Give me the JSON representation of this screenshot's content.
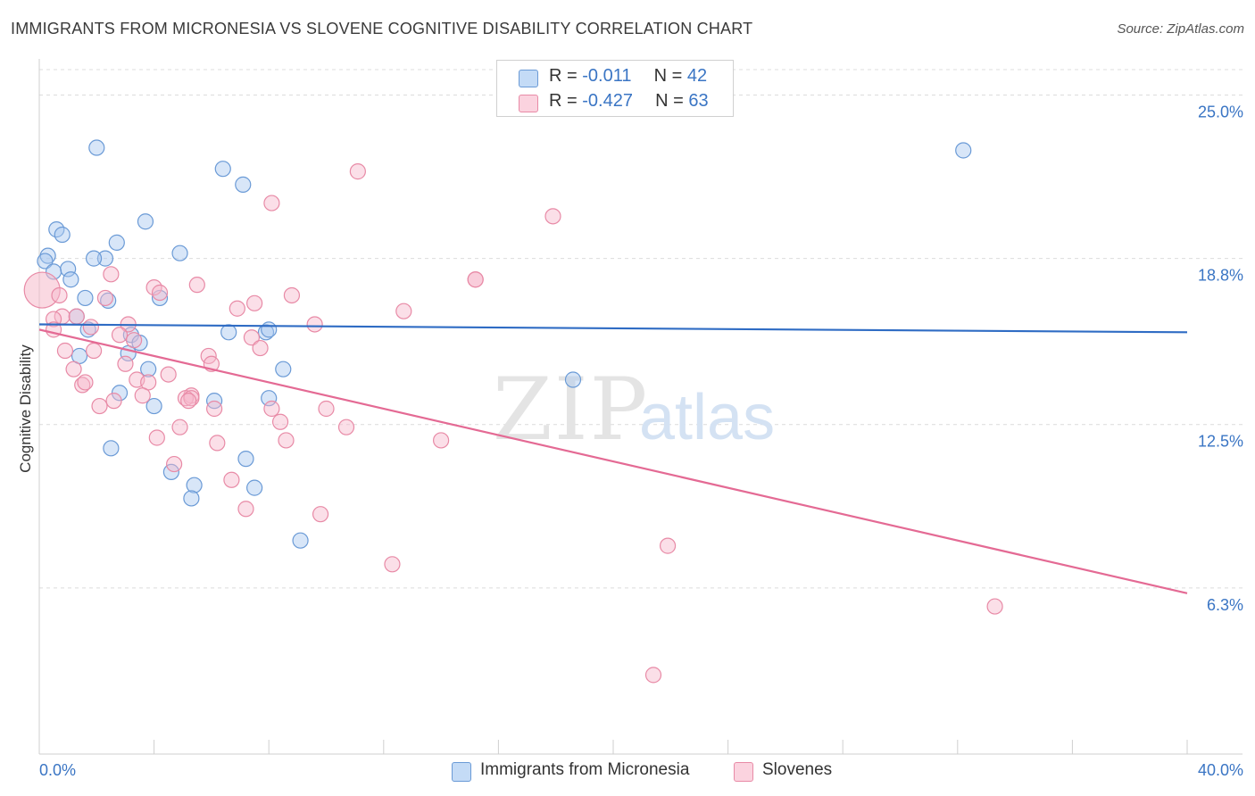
{
  "title": "IMMIGRANTS FROM MICRONESIA VS SLOVENE COGNITIVE DISABILITY CORRELATION CHART",
  "source": "Source: ZipAtlas.com",
  "legend": {
    "series1": {
      "r_label": "R = ",
      "r_value": "-0.011",
      "n_label": "N = ",
      "n_value": "42"
    },
    "series2": {
      "r_label": "R = ",
      "r_value": "-0.427",
      "n_label": "N = ",
      "n_value": "63"
    }
  },
  "colors": {
    "blue_fill": "#a9c8ef",
    "blue_stroke": "#6a9ad6",
    "blue_line": "#2f6cc4",
    "pink_fill": "#f6b9cb",
    "pink_stroke": "#e88aa6",
    "pink_line": "#e46a94",
    "tick_label": "#3a75c4"
  },
  "chart_data": {
    "type": "scatter",
    "title": "IMMIGRANTS FROM MICRONESIA VS SLOVENE COGNITIVE DISABILITY CORRELATION CHART",
    "xlabel": "",
    "ylabel": "Cognitive Disability",
    "xlim": [
      0,
      40
    ],
    "ylim": [
      0,
      26.2
    ],
    "x_tick_labels": [
      "0.0%",
      "40.0%"
    ],
    "y_ticks": [
      6.3,
      12.5,
      18.8,
      25.0
    ],
    "y_tick_labels": [
      "6.3%",
      "12.5%",
      "18.8%",
      "25.0%"
    ],
    "watermark": {
      "zip": "ZIP",
      "atlas": "atlas"
    },
    "series": [
      {
        "name": "Immigrants from Micronesia",
        "r": -0.011,
        "n": 42,
        "trend": {
          "x": [
            0,
            40
          ],
          "y": [
            16.3,
            16.0
          ]
        },
        "points": [
          [
            2.0,
            23.0
          ],
          [
            6.4,
            22.2
          ],
          [
            7.1,
            21.6
          ],
          [
            3.7,
            20.2
          ],
          [
            0.6,
            19.9
          ],
          [
            0.8,
            19.7
          ],
          [
            2.7,
            19.4
          ],
          [
            4.9,
            19.0
          ],
          [
            0.3,
            18.9
          ],
          [
            2.3,
            18.8
          ],
          [
            1.9,
            18.8
          ],
          [
            0.2,
            18.7
          ],
          [
            1.0,
            18.4
          ],
          [
            0.5,
            18.3
          ],
          [
            1.1,
            18.0
          ],
          [
            4.2,
            17.3
          ],
          [
            1.6,
            17.3
          ],
          [
            2.4,
            17.2
          ],
          [
            1.3,
            16.6
          ],
          [
            1.7,
            16.1
          ],
          [
            6.6,
            16.0
          ],
          [
            7.9,
            16.0
          ],
          [
            8.0,
            16.1
          ],
          [
            3.2,
            15.9
          ],
          [
            3.5,
            15.6
          ],
          [
            3.1,
            15.2
          ],
          [
            1.4,
            15.1
          ],
          [
            8.5,
            14.6
          ],
          [
            3.8,
            14.6
          ],
          [
            18.6,
            14.2
          ],
          [
            2.8,
            13.7
          ],
          [
            8.0,
            13.5
          ],
          [
            6.1,
            13.4
          ],
          [
            4.0,
            13.2
          ],
          [
            2.5,
            11.6
          ],
          [
            7.2,
            11.2
          ],
          [
            4.6,
            10.7
          ],
          [
            5.4,
            10.2
          ],
          [
            7.5,
            10.1
          ],
          [
            5.3,
            9.7
          ],
          [
            9.1,
            8.1
          ],
          [
            32.2,
            22.9
          ]
        ]
      },
      {
        "name": "Slovenes",
        "r": -0.427,
        "n": 63,
        "trend": {
          "x": [
            0,
            40
          ],
          "y": [
            16.1,
            6.1
          ]
        },
        "points": [
          [
            0.1,
            17.6
          ],
          [
            11.1,
            22.1
          ],
          [
            8.1,
            20.9
          ],
          [
            17.9,
            20.4
          ],
          [
            2.5,
            18.2
          ],
          [
            15.2,
            18.0
          ],
          [
            15.2,
            18.0
          ],
          [
            5.5,
            17.8
          ],
          [
            4.0,
            17.7
          ],
          [
            0.7,
            17.4
          ],
          [
            4.2,
            17.5
          ],
          [
            8.8,
            17.4
          ],
          [
            2.3,
            17.3
          ],
          [
            7.5,
            17.1
          ],
          [
            6.9,
            16.9
          ],
          [
            0.8,
            16.6
          ],
          [
            1.3,
            16.6
          ],
          [
            12.7,
            16.8
          ],
          [
            0.5,
            16.5
          ],
          [
            3.1,
            16.3
          ],
          [
            1.8,
            16.2
          ],
          [
            9.6,
            16.3
          ],
          [
            0.5,
            16.1
          ],
          [
            2.8,
            15.9
          ],
          [
            7.4,
            15.8
          ],
          [
            3.3,
            15.7
          ],
          [
            7.7,
            15.4
          ],
          [
            1.9,
            15.3
          ],
          [
            0.9,
            15.3
          ],
          [
            5.9,
            15.1
          ],
          [
            6.0,
            14.8
          ],
          [
            3.0,
            14.8
          ],
          [
            1.2,
            14.6
          ],
          [
            4.5,
            14.4
          ],
          [
            3.4,
            14.2
          ],
          [
            3.8,
            14.1
          ],
          [
            1.5,
            14.0
          ],
          [
            1.6,
            14.1
          ],
          [
            5.3,
            13.6
          ],
          [
            5.1,
            13.5
          ],
          [
            5.3,
            13.5
          ],
          [
            2.6,
            13.4
          ],
          [
            5.2,
            13.4
          ],
          [
            6.1,
            13.1
          ],
          [
            8.1,
            13.1
          ],
          [
            10.0,
            13.1
          ],
          [
            2.1,
            13.2
          ],
          [
            3.6,
            13.6
          ],
          [
            8.4,
            12.6
          ],
          [
            10.7,
            12.4
          ],
          [
            4.9,
            12.4
          ],
          [
            4.1,
            12.0
          ],
          [
            8.6,
            11.9
          ],
          [
            14.0,
            11.9
          ],
          [
            6.2,
            11.8
          ],
          [
            4.7,
            11.0
          ],
          [
            6.7,
            10.4
          ],
          [
            7.2,
            9.3
          ],
          [
            9.8,
            9.1
          ],
          [
            12.3,
            7.2
          ],
          [
            21.9,
            7.9
          ],
          [
            33.3,
            5.6
          ],
          [
            21.4,
            3.0
          ]
        ]
      }
    ]
  }
}
